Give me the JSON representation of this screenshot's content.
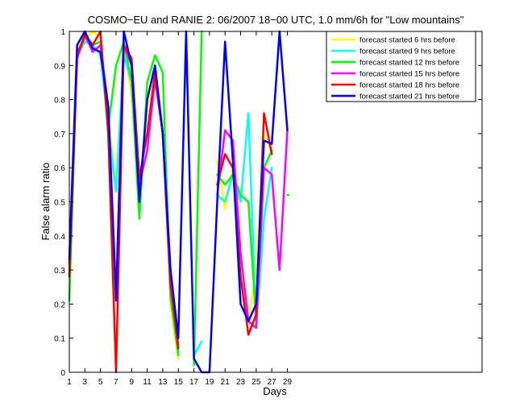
{
  "chart_data": {
    "type": "line",
    "title": "COSMO−EU and RANIE 2: 06/2007 18−00 UTC, 1.0 mm/6h for \"Low mountains\"",
    "xlabel": "Days",
    "ylabel": "False alarm ratio",
    "xlim": [
      1,
      54
    ],
    "ylim": [
      0,
      1
    ],
    "x_ticks": [
      1,
      3,
      5,
      7,
      9,
      11,
      13,
      15,
      17,
      19,
      21,
      23,
      25,
      27,
      29
    ],
    "y_ticks": [
      0,
      0.1,
      0.2,
      0.3,
      0.4,
      0.5,
      0.6,
      0.7,
      0.8,
      0.9,
      1
    ],
    "y_tick_labels": [
      "0",
      "0.1",
      "0.2",
      "0.3",
      "0.4",
      "0.5",
      "0.6",
      "0.7",
      "0.8",
      "0.9",
      "1"
    ],
    "legend_position": "top-right",
    "grid": false,
    "x": [
      1,
      2,
      3,
      4,
      5,
      6,
      7,
      8,
      9,
      10,
      11,
      12,
      13,
      14,
      15,
      16,
      17,
      18,
      19,
      20,
      21,
      22,
      23,
      24,
      25,
      26,
      27,
      28,
      29
    ],
    "series": [
      {
        "name": "forecast started 6 hrs before",
        "color": "#ffff00",
        "values": [
          0.35,
          0.95,
          0.98,
          1.0,
          0.98,
          0.75,
          0.55,
          0.95,
          0.82,
          0.5,
          0.78,
          0.9,
          0.72,
          0.2,
          0.04,
          null,
          null,
          null,
          null,
          0.62,
          0.48,
          0.6,
          0.28,
          0.15,
          0.3,
          0.7,
          0.65,
          null,
          null
        ]
      },
      {
        "name": "forecast started 9 hrs before",
        "color": "#00ffff",
        "values": [
          0.3,
          0.93,
          0.97,
          0.96,
          0.93,
          0.72,
          0.53,
          0.93,
          0.85,
          0.52,
          0.8,
          0.9,
          0.7,
          0.22,
          0.06,
          null,
          0.05,
          0.09,
          null,
          0.52,
          0.5,
          0.58,
          0.5,
          0.76,
          0.13,
          0.45,
          0.6,
          null,
          null
        ]
      },
      {
        "name": "forecast started 12 hrs before",
        "color": "#00ff00",
        "values": [
          0.21,
          0.94,
          0.98,
          0.96,
          0.97,
          0.72,
          0.9,
          0.97,
          0.85,
          0.45,
          0.85,
          0.93,
          0.88,
          0.22,
          0.05,
          null,
          0.02,
          1.0,
          null,
          0.58,
          0.55,
          0.58,
          0.52,
          0.5,
          0.15,
          0.6,
          0.65,
          null,
          0.52
        ]
      },
      {
        "name": "forecast started 15 hrs before",
        "color": "#ff00ff",
        "values": [
          0.32,
          0.92,
          0.99,
          0.94,
          0.96,
          0.78,
          0.22,
          0.96,
          0.9,
          0.55,
          0.65,
          0.86,
          0.7,
          0.25,
          0.08,
          null,
          null,
          null,
          null,
          0.52,
          0.71,
          0.68,
          0.35,
          0.15,
          0.13,
          0.6,
          0.58,
          0.3,
          0.71
        ]
      },
      {
        "name": "forecast started 18 hrs before",
        "color": "#ff0000",
        "values": [
          0.28,
          0.93,
          0.99,
          0.96,
          1.0,
          0.7,
          0.0,
          0.96,
          0.92,
          0.57,
          0.7,
          0.88,
          0.7,
          0.26,
          0.07,
          null,
          null,
          null,
          null,
          0.55,
          0.64,
          0.6,
          0.28,
          0.11,
          0.17,
          0.76,
          0.64,
          null,
          null
        ]
      },
      {
        "name": "forecast started 21 hrs before",
        "color": "#0000ff",
        "values": [
          0.33,
          0.96,
          1.0,
          0.95,
          0.94,
          0.78,
          0.21,
          1.0,
          0.9,
          0.5,
          0.8,
          0.9,
          0.7,
          0.3,
          0.1,
          1.0,
          0.04,
          0.0,
          0.0,
          0.5,
          0.97,
          0.62,
          0.2,
          0.15,
          0.2,
          0.68,
          0.67,
          1.0,
          0.71
        ]
      }
    ]
  }
}
